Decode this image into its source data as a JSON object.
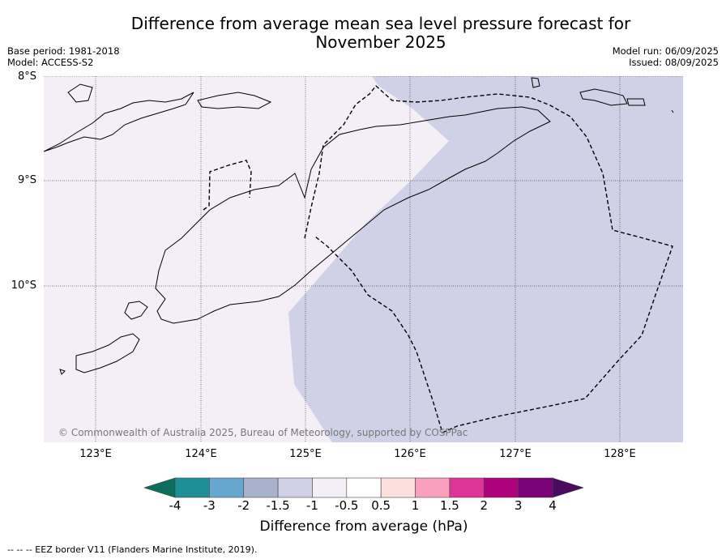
{
  "header": {
    "title_line1": "Difference from average mean sea level pressure forecast for",
    "title_line2": "November 2025",
    "base_period": "Base period: 1981-2018",
    "model": "Model: ACCESS-S2",
    "model_run": "Model run: 06/09/2025",
    "issued": "Issued: 08/09/2025"
  },
  "credit": "© Commonwealth of Australia 2025, Bureau of Meteorology, supported by COSPPac",
  "footer": "--  --  -- EEZ border V11 (Flanders Marine Institute, 2019).",
  "chart_data": {
    "type": "heatmap",
    "title": "Difference from average mean sea level pressure forecast for November 2025",
    "xlabel": "",
    "ylabel": "",
    "xlim": [
      122.5,
      128.6
    ],
    "ylim": [
      -11.5,
      -8.0
    ],
    "x_ticks": [
      123,
      124,
      125,
      126,
      127,
      128
    ],
    "x_tick_labels": [
      "123°E",
      "124°E",
      "125°E",
      "126°E",
      "127°E",
      "128°E"
    ],
    "y_ticks": [
      -8,
      -9,
      -10
    ],
    "y_tick_labels": [
      "8°S",
      "9°S",
      "10°S"
    ],
    "grid": true,
    "regions": [
      {
        "range": [
          -1,
          -0.5
        ],
        "color": "#f4eef6",
        "area": "west"
      },
      {
        "range": [
          -1.5,
          -1
        ],
        "color": "#d0d1e6",
        "area": "east"
      }
    ],
    "colorbar": {
      "label": "Difference from average (hPa)",
      "extend": "both",
      "ticks": [
        "-4",
        "-3",
        "-2",
        "-1.5",
        "-1",
        "-0.5",
        "0.5",
        "1",
        "1.5",
        "2",
        "3",
        "4"
      ],
      "under_color": "#0c6e5d",
      "over_color": "#4a0a5e",
      "colors": [
        "#1f8f97",
        "#67a7cf",
        "#a8b2cb",
        "#d0d1e6",
        "#f4eef6",
        "#ffffff",
        "#fde0dd",
        "#f8a0bd",
        "#dd3497",
        "#ae017e",
        "#7a0177"
      ]
    },
    "eez_label": "EEZ border V11 (Flanders Marine Institute, 2019)"
  }
}
